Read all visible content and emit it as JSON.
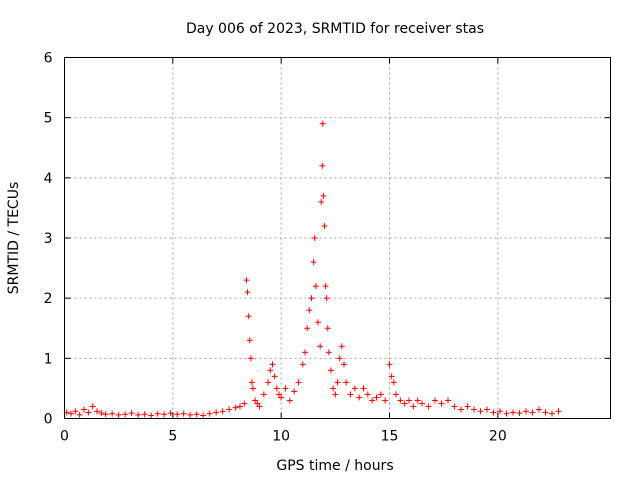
{
  "chart_data": {
    "type": "scatter",
    "title": "Day 006 of 2023, SRMTID for receiver stas",
    "xlabel": "GPS time / hours",
    "ylabel": "SRMTID / TECUs",
    "xlim": [
      0,
      25.2
    ],
    "ylim": [
      0,
      6
    ],
    "xticks": [
      0,
      5,
      10,
      15,
      20
    ],
    "xtick_labels": [
      "0",
      "5",
      "10",
      "15",
      "20"
    ],
    "yticks": [
      0,
      1,
      2,
      3,
      4,
      5,
      6
    ],
    "ytick_labels": [
      "0",
      "1",
      "2",
      "3",
      "4",
      "5",
      "6"
    ],
    "grid": true,
    "marker": "plus",
    "color": "#ff0000",
    "series": [
      {
        "name": "stas",
        "points": [
          [
            0.1,
            0.1
          ],
          [
            0.3,
            0.08
          ],
          [
            0.5,
            0.12
          ],
          [
            0.7,
            0.06
          ],
          [
            0.9,
            0.15
          ],
          [
            1.1,
            0.1
          ],
          [
            1.3,
            0.2
          ],
          [
            1.5,
            0.12
          ],
          [
            1.7,
            0.09
          ],
          [
            1.9,
            0.07
          ],
          [
            2.2,
            0.08
          ],
          [
            2.5,
            0.06
          ],
          [
            2.8,
            0.07
          ],
          [
            3.1,
            0.09
          ],
          [
            3.4,
            0.06
          ],
          [
            3.7,
            0.07
          ],
          [
            4.0,
            0.05
          ],
          [
            4.3,
            0.08
          ],
          [
            4.6,
            0.07
          ],
          [
            4.9,
            0.09
          ],
          [
            5.2,
            0.07
          ],
          [
            5.5,
            0.08
          ],
          [
            5.8,
            0.06
          ],
          [
            6.1,
            0.07
          ],
          [
            6.4,
            0.05
          ],
          [
            6.7,
            0.08
          ],
          [
            7.0,
            0.1
          ],
          [
            7.3,
            0.12
          ],
          [
            7.6,
            0.15
          ],
          [
            7.9,
            0.18
          ],
          [
            8.1,
            0.2
          ],
          [
            8.3,
            0.25
          ],
          [
            8.4,
            2.3
          ],
          [
            8.45,
            2.1
          ],
          [
            8.5,
            1.7
          ],
          [
            8.55,
            1.3
          ],
          [
            8.6,
            1.0
          ],
          [
            8.65,
            0.6
          ],
          [
            8.7,
            0.5
          ],
          [
            8.8,
            0.3
          ],
          [
            8.9,
            0.25
          ],
          [
            9.0,
            0.2
          ],
          [
            9.2,
            0.4
          ],
          [
            9.4,
            0.6
          ],
          [
            9.5,
            0.8
          ],
          [
            9.6,
            0.9
          ],
          [
            9.7,
            0.7
          ],
          [
            9.8,
            0.5
          ],
          [
            9.9,
            0.4
          ],
          [
            10.0,
            0.35
          ],
          [
            10.2,
            0.5
          ],
          [
            10.4,
            0.3
          ],
          [
            10.6,
            0.45
          ],
          [
            10.8,
            0.6
          ],
          [
            11.0,
            0.9
          ],
          [
            11.1,
            1.1
          ],
          [
            11.2,
            1.5
          ],
          [
            11.3,
            1.8
          ],
          [
            11.4,
            2.0
          ],
          [
            11.5,
            2.6
          ],
          [
            11.55,
            3.0
          ],
          [
            11.6,
            2.2
          ],
          [
            11.7,
            1.6
          ],
          [
            11.8,
            1.2
          ],
          [
            11.85,
            3.6
          ],
          [
            11.9,
            4.2
          ],
          [
            11.92,
            4.9
          ],
          [
            11.95,
            3.7
          ],
          [
            12.0,
            3.2
          ],
          [
            12.05,
            2.2
          ],
          [
            12.1,
            2.0
          ],
          [
            12.15,
            1.5
          ],
          [
            12.2,
            1.1
          ],
          [
            12.3,
            0.8
          ],
          [
            12.4,
            0.5
          ],
          [
            12.5,
            0.4
          ],
          [
            12.6,
            0.6
          ],
          [
            12.7,
            1.0
          ],
          [
            12.8,
            1.2
          ],
          [
            12.9,
            0.9
          ],
          [
            13.0,
            0.6
          ],
          [
            13.2,
            0.4
          ],
          [
            13.4,
            0.5
          ],
          [
            13.6,
            0.35
          ],
          [
            13.8,
            0.5
          ],
          [
            14.0,
            0.4
          ],
          [
            14.2,
            0.3
          ],
          [
            14.4,
            0.35
          ],
          [
            14.6,
            0.4
          ],
          [
            14.8,
            0.3
          ],
          [
            15.0,
            0.9
          ],
          [
            15.1,
            0.7
          ],
          [
            15.2,
            0.6
          ],
          [
            15.3,
            0.4
          ],
          [
            15.5,
            0.3
          ],
          [
            15.7,
            0.25
          ],
          [
            15.9,
            0.3
          ],
          [
            16.1,
            0.2
          ],
          [
            16.3,
            0.3
          ],
          [
            16.5,
            0.25
          ],
          [
            16.8,
            0.2
          ],
          [
            17.1,
            0.3
          ],
          [
            17.4,
            0.25
          ],
          [
            17.7,
            0.3
          ],
          [
            18.0,
            0.2
          ],
          [
            18.3,
            0.15
          ],
          [
            18.6,
            0.2
          ],
          [
            18.9,
            0.15
          ],
          [
            19.2,
            0.12
          ],
          [
            19.5,
            0.15
          ],
          [
            19.8,
            0.1
          ],
          [
            20.1,
            0.12
          ],
          [
            20.4,
            0.08
          ],
          [
            20.7,
            0.1
          ],
          [
            21.0,
            0.09
          ],
          [
            21.3,
            0.12
          ],
          [
            21.6,
            0.1
          ],
          [
            21.9,
            0.15
          ],
          [
            22.2,
            0.1
          ],
          [
            22.5,
            0.08
          ],
          [
            22.8,
            0.12
          ]
        ]
      }
    ]
  }
}
